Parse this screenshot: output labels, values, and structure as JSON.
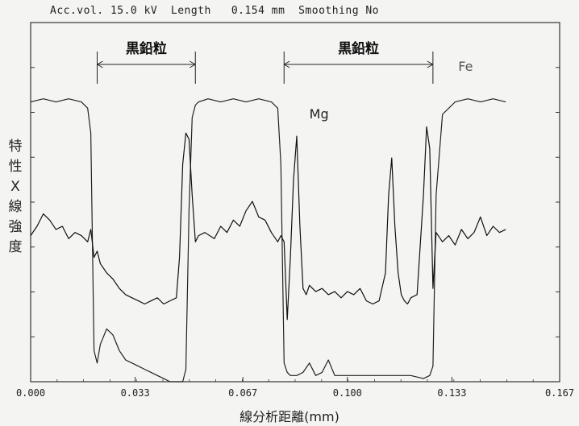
{
  "chart_data": {
    "type": "line",
    "header": "Acc.vol. 15.0 kV  Length   0.154 mm  Smoothing No",
    "xlabel": "線分析距離(mm)",
    "ylabel_chars": [
      "特",
      "性",
      "X",
      "線",
      "強",
      "度"
    ],
    "xlim": [
      0.0,
      0.167
    ],
    "x_ticks": [
      "0.000",
      "0.033",
      "0.067",
      "0.100",
      "0.133",
      "0.167"
    ],
    "grid": false,
    "annotations": [
      {
        "label": "黒鉛粒",
        "x_start": 0.021,
        "x_end": 0.052
      },
      {
        "label": "黒鉛粒",
        "x_start": 0.08,
        "x_end": 0.127
      }
    ],
    "series": [
      {
        "name": "Fe",
        "color": "#222222",
        "x": [
          0.0,
          0.004,
          0.008,
          0.012,
          0.016,
          0.018,
          0.019,
          0.02,
          0.021,
          0.022,
          0.024,
          0.026,
          0.028,
          0.03,
          0.032,
          0.034,
          0.036,
          0.038,
          0.04,
          0.042,
          0.044,
          0.046,
          0.048,
          0.049,
          0.05,
          0.051,
          0.052,
          0.053,
          0.056,
          0.06,
          0.064,
          0.068,
          0.072,
          0.076,
          0.078,
          0.079,
          0.08,
          0.081,
          0.082,
          0.084,
          0.086,
          0.088,
          0.09,
          0.092,
          0.094,
          0.096,
          0.098,
          0.1,
          0.104,
          0.108,
          0.112,
          0.116,
          0.12,
          0.124,
          0.126,
          0.127,
          0.128,
          0.13,
          0.134,
          0.138,
          0.142,
          0.146,
          0.15
        ],
        "y": [
          0.9,
          0.91,
          0.9,
          0.91,
          0.9,
          0.88,
          0.8,
          0.1,
          0.06,
          0.12,
          0.17,
          0.15,
          0.1,
          0.07,
          0.06,
          0.05,
          0.04,
          0.03,
          0.02,
          0.01,
          0.0,
          0.0,
          0.0,
          0.04,
          0.55,
          0.85,
          0.89,
          0.9,
          0.91,
          0.9,
          0.91,
          0.9,
          0.91,
          0.9,
          0.88,
          0.7,
          0.06,
          0.03,
          0.02,
          0.02,
          0.03,
          0.06,
          0.02,
          0.03,
          0.07,
          0.02,
          0.02,
          0.02,
          0.02,
          0.02,
          0.02,
          0.02,
          0.02,
          0.01,
          0.02,
          0.05,
          0.6,
          0.86,
          0.9,
          0.91,
          0.9,
          0.91,
          0.9
        ]
      },
      {
        "name": "Mg",
        "color": "#111111",
        "x": [
          0.0,
          0.002,
          0.004,
          0.006,
          0.008,
          0.01,
          0.012,
          0.014,
          0.016,
          0.018,
          0.019,
          0.02,
          0.021,
          0.022,
          0.024,
          0.026,
          0.028,
          0.03,
          0.032,
          0.034,
          0.036,
          0.038,
          0.04,
          0.042,
          0.044,
          0.046,
          0.047,
          0.048,
          0.049,
          0.05,
          0.051,
          0.052,
          0.053,
          0.055,
          0.058,
          0.06,
          0.062,
          0.064,
          0.066,
          0.068,
          0.07,
          0.072,
          0.074,
          0.076,
          0.078,
          0.079,
          0.08,
          0.081,
          0.082,
          0.083,
          0.084,
          0.085,
          0.086,
          0.087,
          0.088,
          0.09,
          0.092,
          0.094,
          0.096,
          0.098,
          0.1,
          0.102,
          0.104,
          0.106,
          0.108,
          0.11,
          0.112,
          0.113,
          0.114,
          0.115,
          0.116,
          0.117,
          0.118,
          0.119,
          0.12,
          0.122,
          0.124,
          0.125,
          0.126,
          0.127,
          0.128,
          0.13,
          0.132,
          0.134,
          0.136,
          0.138,
          0.14,
          0.142,
          0.144,
          0.146,
          0.148,
          0.15
        ],
        "y": [
          0.47,
          0.5,
          0.54,
          0.52,
          0.49,
          0.5,
          0.46,
          0.48,
          0.47,
          0.45,
          0.49,
          0.4,
          0.42,
          0.38,
          0.35,
          0.33,
          0.3,
          0.28,
          0.27,
          0.26,
          0.25,
          0.26,
          0.27,
          0.25,
          0.26,
          0.27,
          0.4,
          0.7,
          0.8,
          0.78,
          0.6,
          0.45,
          0.47,
          0.48,
          0.46,
          0.5,
          0.48,
          0.52,
          0.5,
          0.55,
          0.58,
          0.53,
          0.52,
          0.48,
          0.45,
          0.47,
          0.45,
          0.2,
          0.4,
          0.65,
          0.79,
          0.5,
          0.3,
          0.28,
          0.31,
          0.29,
          0.3,
          0.28,
          0.29,
          0.27,
          0.29,
          0.28,
          0.3,
          0.26,
          0.25,
          0.26,
          0.35,
          0.6,
          0.72,
          0.5,
          0.35,
          0.28,
          0.26,
          0.25,
          0.27,
          0.28,
          0.6,
          0.82,
          0.75,
          0.3,
          0.48,
          0.45,
          0.47,
          0.44,
          0.49,
          0.46,
          0.48,
          0.53,
          0.47,
          0.5,
          0.48,
          0.49
        ]
      }
    ]
  }
}
